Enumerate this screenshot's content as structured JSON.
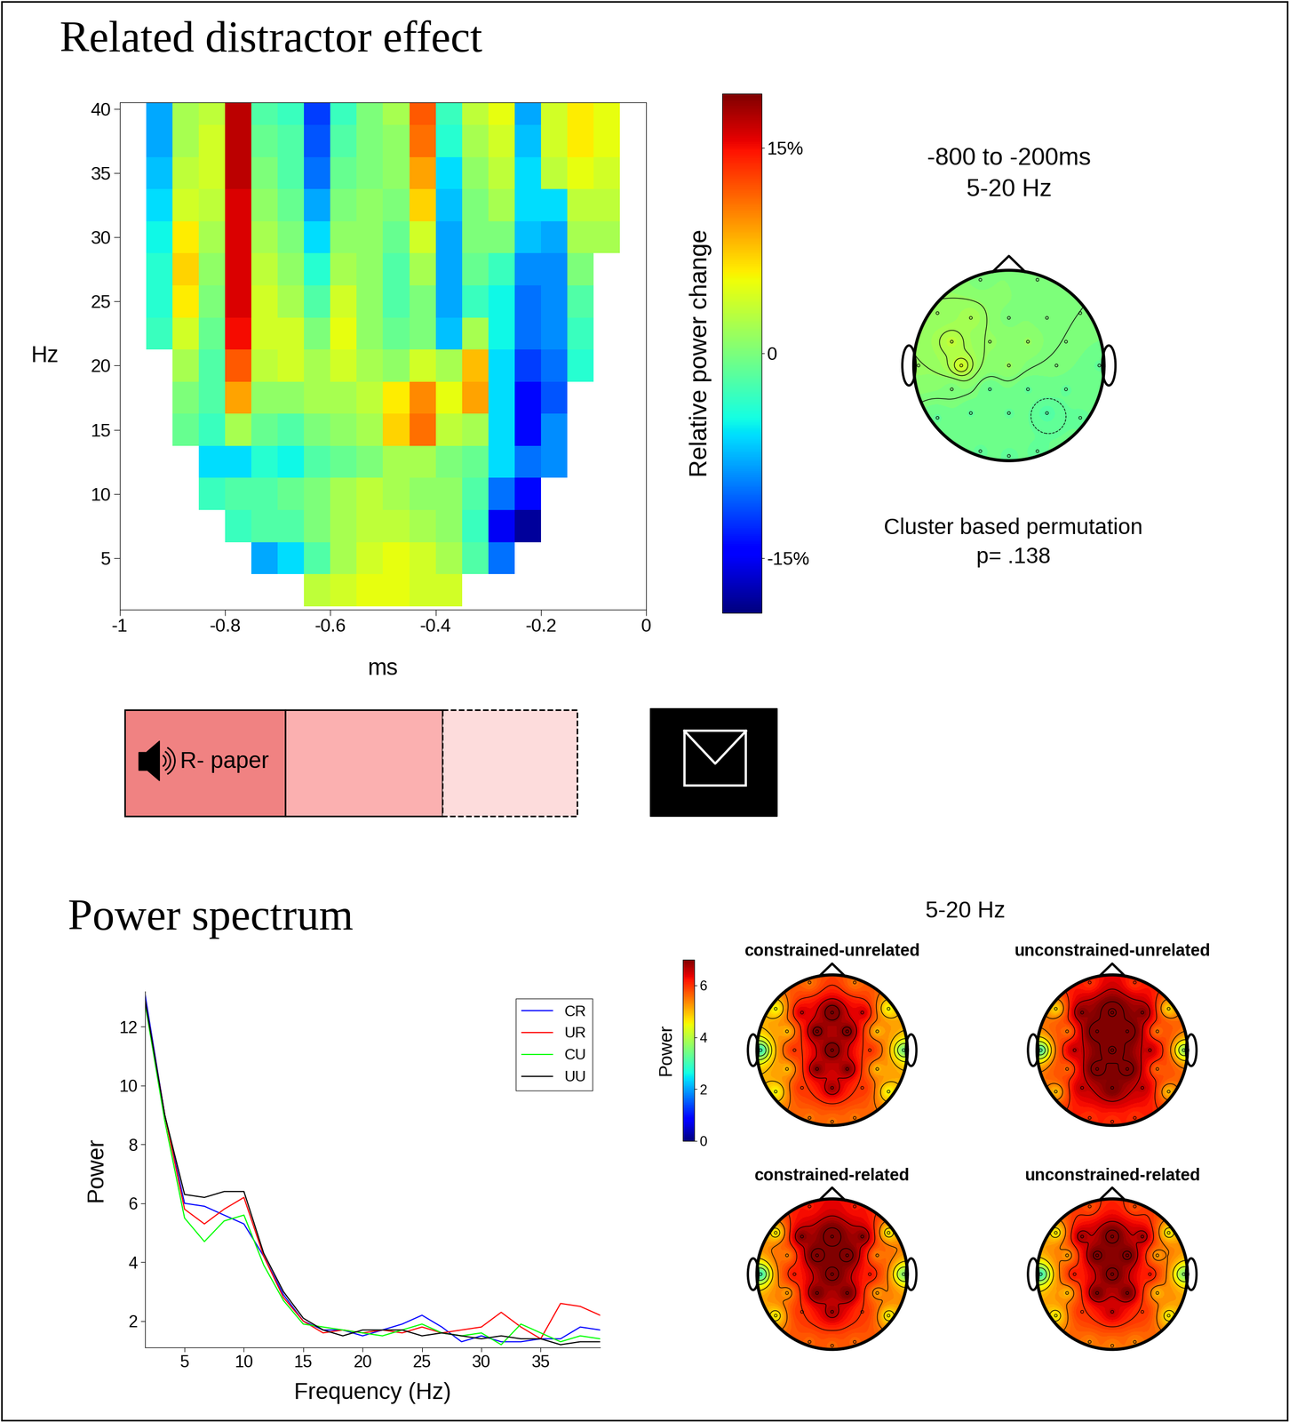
{
  "chart_data": [
    {
      "type": "heatmap",
      "title": "Related distractor effect",
      "x_label": "ms",
      "y_label": "Hz",
      "x": [
        -0.975,
        -0.925,
        -0.875,
        -0.825,
        -0.775,
        -0.725,
        -0.675,
        -0.625,
        -0.575,
        -0.525,
        -0.475,
        -0.425,
        -0.375,
        -0.325,
        -0.275,
        -0.225,
        -0.175,
        -0.125,
        -0.075,
        -0.025
      ],
      "y": [
        2.5,
        5,
        7.5,
        10,
        12.5,
        15,
        17.5,
        20,
        22.5,
        25,
        27.5,
        30,
        32.5,
        35,
        37.5,
        40
      ],
      "cells": [
        [
          null,
          null,
          null,
          null,
          null,
          null,
          null,
          3,
          4,
          5,
          5,
          4,
          4,
          null,
          null,
          null,
          null,
          null,
          null,
          null
        ],
        [
          null,
          null,
          null,
          null,
          null,
          -8,
          -6,
          -2,
          2,
          4,
          5,
          4,
          2,
          -2,
          -10,
          null,
          null,
          null,
          null,
          null
        ],
        [
          null,
          null,
          null,
          null,
          -3,
          -2,
          -2,
          0,
          2,
          3,
          3,
          2,
          1,
          -3,
          -15,
          -18,
          null,
          null,
          null,
          null
        ],
        [
          null,
          null,
          null,
          -3,
          -2,
          -2,
          -1,
          0,
          2,
          3,
          2,
          1,
          1,
          -2,
          -10,
          -14,
          null,
          null,
          null,
          null
        ],
        [
          null,
          null,
          null,
          -6,
          -6,
          -4,
          -5,
          -2,
          -1,
          0,
          2,
          2,
          0,
          -1,
          -6,
          -10,
          -9,
          null,
          null,
          null
        ],
        [
          null,
          null,
          -1,
          -3,
          2,
          -1,
          -2,
          0,
          1,
          2,
          7,
          11,
          3,
          2,
          -6,
          -14,
          -9,
          null,
          null,
          null
        ],
        [
          null,
          null,
          0,
          -2,
          9,
          1,
          1,
          2,
          2,
          3,
          6,
          10,
          5,
          9,
          -6,
          -14,
          -11,
          null,
          null,
          null
        ],
        [
          null,
          null,
          2,
          -2,
          12,
          3,
          4,
          2,
          4,
          2,
          1,
          4,
          2,
          8,
          -6,
          -12,
          -10,
          -4,
          null,
          null
        ],
        [
          null,
          -3,
          4,
          -1,
          15,
          4,
          4,
          0,
          5,
          1,
          -1,
          0,
          -7,
          2,
          -5,
          -10,
          -9,
          -3,
          null,
          null
        ],
        [
          null,
          -4,
          6,
          0,
          16,
          4,
          2,
          -2,
          4,
          1,
          -2,
          0,
          -8,
          -3,
          -5,
          -10,
          -9,
          -2,
          null,
          null
        ],
        [
          null,
          -4,
          7,
          1,
          16,
          3,
          1,
          -4,
          2,
          1,
          -2,
          2,
          -8,
          -1,
          -3,
          -9,
          -9,
          0,
          null,
          null
        ],
        [
          null,
          -5,
          6,
          2,
          16,
          2,
          0,
          -6,
          1,
          1,
          -1,
          4,
          -8,
          0,
          0,
          -7,
          -8,
          2,
          2,
          null
        ],
        [
          null,
          -6,
          4,
          3,
          16,
          1,
          -1,
          -8,
          0,
          1,
          0,
          7,
          -7,
          0,
          2,
          -6,
          -6,
          3,
          3,
          null
        ],
        [
          null,
          -7,
          3,
          4,
          17,
          0,
          -2,
          -10,
          -1,
          0,
          1,
          9,
          -6,
          1,
          3,
          -6,
          3,
          5,
          4,
          null
        ],
        [
          null,
          -8,
          2,
          4,
          17,
          -1,
          -2,
          -11,
          -2,
          0,
          1,
          11,
          -4,
          2,
          4,
          -7,
          4,
          6,
          5,
          null
        ],
        [
          null,
          -8,
          2,
          3,
          17,
          -2,
          -3,
          -12,
          -3,
          0,
          2,
          12,
          -3,
          3,
          5,
          -8,
          4,
          6,
          5,
          null
        ]
      ],
      "xlim": [
        -1,
        0
      ],
      "xticks": [
        -1,
        -0.8,
        -0.6,
        -0.4,
        -0.2,
        0
      ],
      "ylim": [
        1,
        40.5
      ],
      "yticks": [
        5,
        10,
        15,
        20,
        25,
        30,
        35,
        40
      ],
      "colorbar": {
        "label": "Relative power change",
        "range": [
          -19,
          19
        ],
        "ticks": [
          {
            "value": -15,
            "label": "-15%"
          },
          0,
          {
            "value": 15,
            "label": "15%"
          }
        ]
      },
      "stimulus_label": "R- paper"
    },
    {
      "type": "topomap",
      "title": "-800 to -200ms",
      "subtitle": "5-20 Hz",
      "note": "Cluster based permutation",
      "p_label": "p= .138",
      "color_range": [
        -19,
        19
      ],
      "electrodes": [
        [
          -0.3,
          0.9
        ],
        [
          0.3,
          0.9
        ],
        [
          -0.75,
          0.55
        ],
        [
          -0.4,
          0.5
        ],
        [
          0,
          0.5
        ],
        [
          0.4,
          0.5
        ],
        [
          0.75,
          0.55
        ],
        [
          -0.6,
          0.25
        ],
        [
          -0.2,
          0.25
        ],
        [
          0.2,
          0.25
        ],
        [
          0.6,
          0.25
        ],
        [
          -0.95,
          0
        ],
        [
          -0.5,
          0
        ],
        [
          0,
          0
        ],
        [
          0.5,
          0
        ],
        [
          0.95,
          0
        ],
        [
          -0.6,
          -0.25
        ],
        [
          -0.2,
          -0.25
        ],
        [
          0.2,
          -0.25
        ],
        [
          0.6,
          -0.25
        ],
        [
          -0.75,
          -0.55
        ],
        [
          -0.4,
          -0.5
        ],
        [
          0,
          -0.5
        ],
        [
          0.4,
          -0.5
        ],
        [
          0.75,
          -0.55
        ],
        [
          -0.3,
          -0.9
        ],
        [
          0,
          -0.95
        ],
        [
          0.3,
          -0.9
        ]
      ],
      "values": [
        0,
        0,
        1,
        2,
        0,
        0,
        0,
        3,
        1,
        1,
        0,
        1,
        4,
        1,
        0,
        -1,
        0,
        -1,
        -1,
        -1,
        -1,
        -1,
        -1,
        -2,
        -1,
        -1,
        -1,
        -1
      ]
    },
    {
      "type": "line",
      "title": "Power spectrum",
      "x_label": "Frequency (Hz)",
      "y_label": "Power",
      "x": [
        1.67,
        3.33,
        5,
        6.67,
        8.33,
        10,
        11.67,
        13.33,
        15,
        16.67,
        18.33,
        20,
        21.67,
        23.33,
        25,
        26.67,
        28.33,
        30,
        31.67,
        33.33,
        35,
        36.67,
        38.33,
        40
      ],
      "series": [
        {
          "name": "CR",
          "color": "#0000ff",
          "values": [
            13.1,
            9.0,
            6.0,
            5.9,
            5.6,
            5.3,
            4.2,
            2.9,
            2.0,
            1.7,
            1.7,
            1.5,
            1.7,
            1.9,
            2.2,
            1.8,
            1.3,
            1.5,
            1.3,
            1.3,
            1.4,
            1.4,
            1.8,
            1.7
          ]
        },
        {
          "name": "UR",
          "color": "#ff0000",
          "values": [
            12.9,
            9.0,
            5.8,
            5.3,
            5.8,
            6.2,
            4.2,
            2.8,
            2.0,
            1.6,
            1.7,
            1.6,
            1.7,
            1.6,
            1.8,
            1.6,
            1.7,
            1.8,
            2.3,
            1.8,
            1.4,
            2.6,
            2.5,
            2.2
          ]
        },
        {
          "name": "CU",
          "color": "#00ff00",
          "values": [
            12.8,
            8.8,
            5.5,
            4.7,
            5.4,
            5.6,
            3.9,
            2.7,
            1.9,
            1.8,
            1.7,
            1.6,
            1.5,
            1.7,
            1.9,
            1.6,
            1.5,
            1.6,
            1.2,
            1.9,
            1.6,
            1.3,
            1.5,
            1.4
          ]
        },
        {
          "name": "UU",
          "color": "#000000",
          "values": [
            12.9,
            9.0,
            6.3,
            6.2,
            6.4,
            6.4,
            4.3,
            3.0,
            2.1,
            1.7,
            1.5,
            1.7,
            1.7,
            1.7,
            1.5,
            1.6,
            1.5,
            1.4,
            1.5,
            1.4,
            1.4,
            1.2,
            1.3,
            1.3
          ]
        }
      ],
      "xlim": [
        1.67,
        40
      ],
      "xticks": [
        5,
        10,
        15,
        20,
        25,
        30,
        35
      ],
      "ylim": [
        1.1,
        13.2
      ],
      "yticks": [
        2,
        4,
        6,
        8,
        10,
        12
      ],
      "legend": "upper right"
    },
    {
      "type": "topomap",
      "title": "5-20 Hz",
      "colorbar": {
        "label": "Power",
        "range": [
          0,
          7
        ],
        "ticks": [
          0,
          2,
          4,
          6
        ]
      },
      "electrodes": [
        [
          -0.3,
          0.9
        ],
        [
          0.3,
          0.9
        ],
        [
          -0.75,
          0.55
        ],
        [
          -0.4,
          0.5
        ],
        [
          0,
          0.5
        ],
        [
          0.4,
          0.5
        ],
        [
          0.75,
          0.55
        ],
        [
          -0.6,
          0.25
        ],
        [
          -0.2,
          0.25
        ],
        [
          0.2,
          0.25
        ],
        [
          0.6,
          0.25
        ],
        [
          -0.95,
          0
        ],
        [
          -0.5,
          0
        ],
        [
          0,
          0
        ],
        [
          0.5,
          0
        ],
        [
          0.95,
          0
        ],
        [
          -0.6,
          -0.25
        ],
        [
          -0.2,
          -0.25
        ],
        [
          0.2,
          -0.25
        ],
        [
          0.6,
          -0.25
        ],
        [
          -0.75,
          -0.55
        ],
        [
          -0.4,
          -0.5
        ],
        [
          0,
          -0.5
        ],
        [
          0.4,
          -0.5
        ],
        [
          0.75,
          -0.55
        ],
        [
          -0.3,
          -0.9
        ],
        [
          0,
          -0.95
        ],
        [
          0.3,
          -0.9
        ]
      ],
      "maps": [
        {
          "title": "constrained-unrelated",
          "values": [
            5.5,
            5.5,
            4.5,
            6.5,
            7.5,
            6.5,
            4.5,
            5.0,
            7.2,
            7.2,
            5.0,
            3.0,
            6.0,
            7.5,
            6.0,
            3.5,
            5.0,
            7.0,
            7.0,
            5.0,
            4.5,
            6.0,
            6.8,
            6.0,
            4.5,
            5.5,
            5.5,
            5.5
          ]
        },
        {
          "title": "unconstrained-unrelated",
          "values": [
            6.0,
            6.0,
            4.8,
            7.0,
            8.0,
            7.0,
            4.8,
            5.5,
            7.8,
            7.8,
            5.5,
            3.2,
            6.6,
            8.0,
            6.6,
            3.8,
            5.6,
            7.6,
            7.6,
            5.6,
            5.0,
            6.6,
            7.2,
            6.6,
            5.0,
            6.0,
            6.0,
            6.0
          ]
        },
        {
          "title": "constrained-related",
          "values": [
            6.2,
            6.2,
            4.6,
            7.0,
            7.8,
            7.0,
            4.6,
            5.4,
            7.6,
            7.6,
            5.4,
            3.0,
            6.2,
            7.6,
            6.2,
            3.6,
            5.2,
            7.2,
            7.2,
            5.2,
            4.6,
            6.0,
            6.8,
            6.0,
            4.6,
            5.6,
            5.6,
            5.6
          ]
        },
        {
          "title": "unconstrained-related",
          "values": [
            5.8,
            5.8,
            4.6,
            6.8,
            7.6,
            6.8,
            4.6,
            5.2,
            7.4,
            7.4,
            5.2,
            3.0,
            6.2,
            7.6,
            6.2,
            3.6,
            5.0,
            7.2,
            7.2,
            5.0,
            4.6,
            6.0,
            6.6,
            6.0,
            4.6,
            5.4,
            5.4,
            5.4
          ]
        }
      ]
    }
  ]
}
